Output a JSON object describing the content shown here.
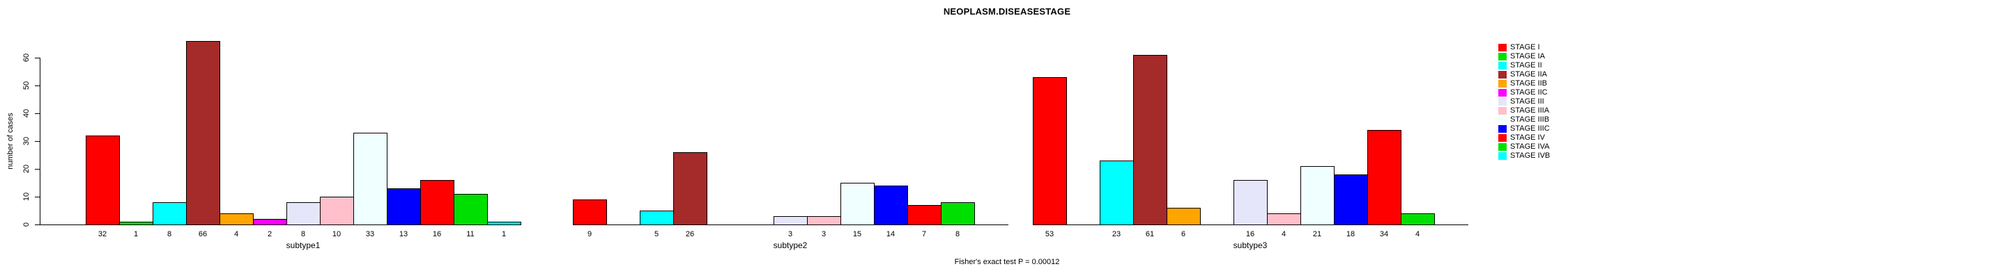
{
  "chart_data": {
    "type": "bar",
    "title": "NEOPLASM.DISEASESTAGE",
    "xlabel": "",
    "ylabel": "number of cases",
    "ylim": [
      0,
      66
    ],
    "yticks": [
      0,
      10,
      20,
      30,
      40,
      50,
      60
    ],
    "grid": false,
    "legend_position": "right",
    "categories": [
      "subtype1",
      "subtype2",
      "subtype3"
    ],
    "stages": [
      "STAGE I",
      "STAGE IA",
      "STAGE II",
      "STAGE IIA",
      "STAGE IIB",
      "STAGE IIC",
      "STAGE III",
      "STAGE IIIA",
      "STAGE IIIB",
      "STAGE IIIC",
      "STAGE IV",
      "STAGE IVA",
      "STAGE IVB"
    ],
    "stage_colors": [
      "#FF0000",
      "#00E000",
      "#00FFFF",
      "#A52A2A",
      "#FFA500",
      "#FF00FF",
      "#E6E6FA",
      "#FFC0CB",
      "#F0FFFF",
      "#0000FF",
      "#FF0000",
      "#00E000",
      "#00FFFF"
    ],
    "series": [
      {
        "name": "subtype1",
        "values": [
          32,
          1,
          8,
          66,
          4,
          2,
          8,
          10,
          33,
          13,
          16,
          11,
          1
        ]
      },
      {
        "name": "subtype2",
        "values": [
          9,
          0,
          5,
          26,
          0,
          0,
          3,
          3,
          15,
          14,
          7,
          8,
          0
        ]
      },
      {
        "name": "subtype3",
        "values": [
          53,
          0,
          23,
          61,
          6,
          0,
          16,
          4,
          21,
          18,
          34,
          4,
          0
        ]
      }
    ],
    "bar_value_labels_shown": true,
    "annotation": "Fisher's exact test P = 0.00012"
  }
}
